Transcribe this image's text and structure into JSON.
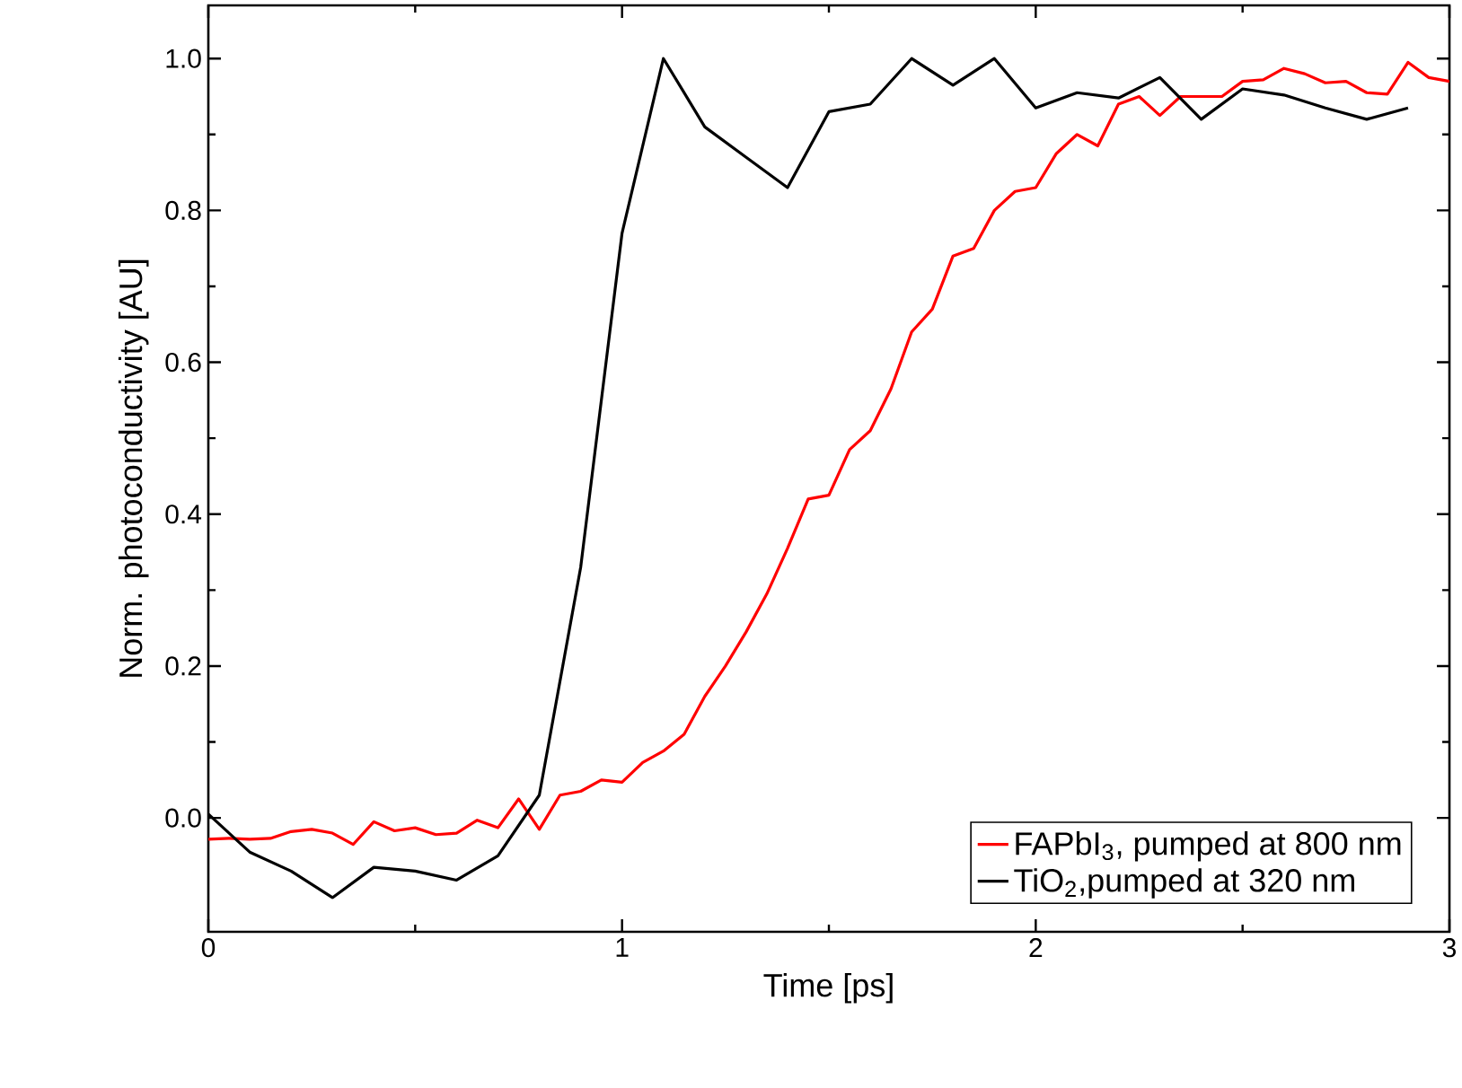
{
  "chart_data": {
    "type": "line",
    "xlabel": "Time [ps]",
    "ylabel": "Norm. photoconductivity [AU]",
    "xlim": [
      0,
      3
    ],
    "ylim": [
      -0.15,
      1.07
    ],
    "xticks": [
      0,
      1,
      2,
      3
    ],
    "yticks": [
      {
        "value": 0,
        "label": "0.0"
      },
      {
        "value": 0.2,
        "label": "0.2"
      },
      {
        "value": 0.4,
        "label": "0.4"
      },
      {
        "value": 0.6,
        "label": "0.6"
      },
      {
        "value": 0.8,
        "label": "0.8"
      },
      {
        "value": 1,
        "label": "1.0"
      }
    ],
    "legend": "bottom right",
    "grid": false,
    "marker": "none",
    "line_style": "solid",
    "series": [
      {
        "name": "FAPbI$_{3}$, pumped at 800 nm",
        "color": "#ff0000",
        "x": [
          0,
          0.05,
          0.1,
          0.15,
          0.2,
          0.25,
          0.3,
          0.35,
          0.4,
          0.45,
          0.5,
          0.55,
          0.6,
          0.65,
          0.7,
          0.75,
          0.8,
          0.85,
          0.9,
          0.95,
          1.0,
          1.05,
          1.1,
          1.15,
          1.2,
          1.25,
          1.3,
          1.35,
          1.4,
          1.45,
          1.5,
          1.55,
          1.6,
          1.65,
          1.7,
          1.75,
          1.8,
          1.85,
          1.9,
          1.95,
          2.0,
          2.05,
          2.1,
          2.15,
          2.2,
          2.25,
          2.3,
          2.35,
          2.4,
          2.45,
          2.5,
          2.55,
          2.6,
          2.65,
          2.7,
          2.75,
          2.8,
          2.85,
          2.9,
          2.95,
          3.0
        ],
        "values": [
          -0.028,
          -0.027,
          -0.028,
          -0.027,
          -0.018,
          -0.015,
          -0.02,
          -0.035,
          -0.005,
          -0.017,
          -0.013,
          -0.022,
          -0.02,
          -0.003,
          -0.013,
          0.025,
          -0.015,
          0.03,
          0.035,
          0.05,
          0.047,
          0.073,
          0.088,
          0.11,
          0.16,
          0.2,
          0.245,
          0.295,
          0.355,
          0.42,
          0.425,
          0.485,
          0.51,
          0.565,
          0.64,
          0.67,
          0.74,
          0.75,
          0.8,
          0.825,
          0.83,
          0.875,
          0.9,
          0.885,
          0.94,
          0.95,
          0.925,
          0.95,
          0.95,
          0.95,
          0.97,
          0.972,
          0.987,
          0.98,
          0.968,
          0.97,
          0.955,
          0.953,
          0.995,
          0.975,
          0.97
        ]
      },
      {
        "name": "TiO$_{2}$,pumped at 320 nm",
        "color": "#000000",
        "x": [
          0,
          0.1,
          0.2,
          0.3,
          0.4,
          0.5,
          0.6,
          0.7,
          0.8,
          0.9,
          1.0,
          1.1,
          1.2,
          1.3,
          1.4,
          1.5,
          1.6,
          1.7,
          1.8,
          1.9,
          2.0,
          2.1,
          2.2,
          2.3,
          2.4,
          2.5,
          2.6,
          2.7,
          2.8,
          2.9
        ],
        "values": [
          0.005,
          -0.045,
          -0.07,
          -0.105,
          -0.065,
          -0.07,
          -0.082,
          -0.05,
          0.03,
          0.33,
          0.77,
          1.0,
          0.91,
          0.87,
          0.83,
          0.93,
          0.94,
          1.0,
          0.965,
          1.0,
          0.935,
          0.955,
          0.948,
          0.975,
          0.92,
          0.96,
          0.952,
          0.935,
          0.92,
          0.935
        ]
      }
    ]
  }
}
